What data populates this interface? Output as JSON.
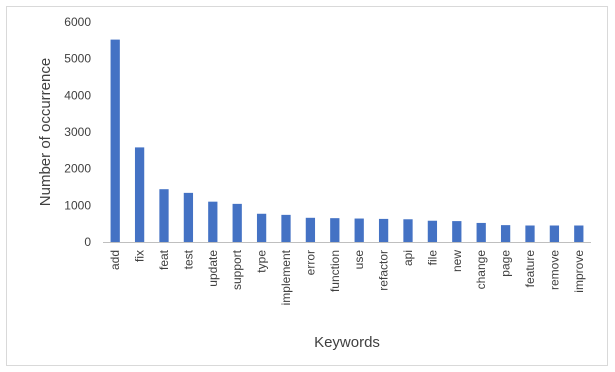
{
  "chart_data": {
    "type": "bar",
    "title": "",
    "xlabel": "Keywords",
    "ylabel": "Number of occurrence",
    "categories": [
      "add",
      "fix",
      "feat",
      "test",
      "update",
      "support",
      "type",
      "implement",
      "error",
      "function",
      "use",
      "refactor",
      "api",
      "file",
      "new",
      "change",
      "page",
      "feature",
      "remove",
      "improve"
    ],
    "values": [
      5520,
      2580,
      1440,
      1340,
      1100,
      1040,
      770,
      740,
      660,
      650,
      640,
      630,
      620,
      580,
      570,
      520,
      460,
      450,
      450,
      450
    ],
    "ylim": [
      0,
      6000
    ],
    "yticks": [
      "0",
      "1000",
      "2000",
      "3000",
      "4000",
      "5000",
      "6000"
    ],
    "grid": false,
    "legend": "none",
    "bar_color": "#4472c4",
    "axis_color": "#bfbfbf"
  }
}
